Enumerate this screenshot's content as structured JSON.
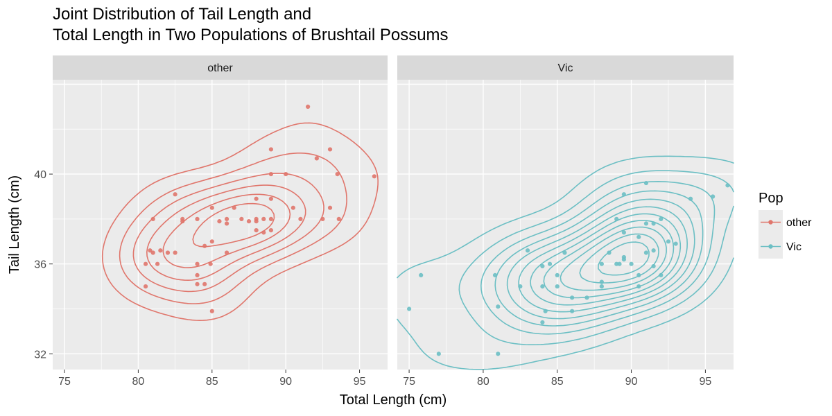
{
  "chart_data": {
    "type": "scatter",
    "title": [
      "Joint Distribution of Tail Length and",
      "Total Length in Two Populations of Brushtail Possums"
    ],
    "xlabel": "Total Length (cm)",
    "ylabel": "Tail Length (cm)",
    "xlim": [
      74.2,
      96.9
    ],
    "ylim": [
      31.3,
      44.2
    ],
    "x_ticks": [
      75,
      80,
      85,
      90,
      95
    ],
    "y_ticks": [
      32,
      36,
      40
    ],
    "grid": true,
    "legend": {
      "title": "Pop",
      "position": "right",
      "entries": [
        {
          "label": "other",
          "color": "#E0766C"
        },
        {
          "label": "Vic",
          "color": "#6CBFC4"
        }
      ]
    },
    "panels": [
      {
        "facet_label": "other",
        "color": "#E0766C",
        "points": [
          [
            91.5,
            43.0
          ],
          [
            92.1,
            40.7
          ],
          [
            93.0,
            41.1
          ],
          [
            89.0,
            41.1
          ],
          [
            93.5,
            40.0
          ],
          [
            96.0,
            39.9
          ],
          [
            89.0,
            40.0
          ],
          [
            90.0,
            40.0
          ],
          [
            82.5,
            39.1
          ],
          [
            84.0,
            38.0
          ],
          [
            85.0,
            38.5
          ],
          [
            86.0,
            38.0
          ],
          [
            86.5,
            38.5
          ],
          [
            87.0,
            38.0
          ],
          [
            88.0,
            38.9
          ],
          [
            88.0,
            38.0
          ],
          [
            88.5,
            38.0
          ],
          [
            89.0,
            38.0
          ],
          [
            87.5,
            37.9
          ],
          [
            88.0,
            37.9
          ],
          [
            86.0,
            37.8
          ],
          [
            85.5,
            37.9
          ],
          [
            83.0,
            38.0
          ],
          [
            83.0,
            37.9
          ],
          [
            81.0,
            38.0
          ],
          [
            89.0,
            37.5
          ],
          [
            88.5,
            37.4
          ],
          [
            88.0,
            37.5
          ],
          [
            90.5,
            38.5
          ],
          [
            91.0,
            38.0
          ],
          [
            92.5,
            38.0
          ],
          [
            93.0,
            38.5
          ],
          [
            93.6,
            38.0
          ],
          [
            89.0,
            38.9
          ],
          [
            85.0,
            37.0
          ],
          [
            84.5,
            36.8
          ],
          [
            86.0,
            36.5
          ],
          [
            84.9,
            36.0
          ],
          [
            80.5,
            36.0
          ],
          [
            80.8,
            36.6
          ],
          [
            81.0,
            36.5
          ],
          [
            81.5,
            36.6
          ],
          [
            82.0,
            36.5
          ],
          [
            82.5,
            36.5
          ],
          [
            81.3,
            36.0
          ],
          [
            84.0,
            36.0
          ],
          [
            84.0,
            35.5
          ],
          [
            84.5,
            35.1
          ],
          [
            84.0,
            35.1
          ],
          [
            80.5,
            35.0
          ],
          [
            85.0,
            33.9
          ]
        ],
        "contour_center": [
          88.4,
          38.0
        ],
        "contour_levels": 6
      },
      {
        "facet_label": "Vic",
        "color": "#6CBFC4",
        "points": [
          [
            75.0,
            34.0
          ],
          [
            75.8,
            35.5
          ],
          [
            77.0,
            32.0
          ],
          [
            80.8,
            35.5
          ],
          [
            81.0,
            34.1
          ],
          [
            81.0,
            32.0
          ],
          [
            82.5,
            35.0
          ],
          [
            83.0,
            36.6
          ],
          [
            84.0,
            35.0
          ],
          [
            84.0,
            35.9
          ],
          [
            84.0,
            33.4
          ],
          [
            84.2,
            33.9
          ],
          [
            84.5,
            36.0
          ],
          [
            85.0,
            35.5
          ],
          [
            85.0,
            35.0
          ],
          [
            85.5,
            36.5
          ],
          [
            86.0,
            33.9
          ],
          [
            86.0,
            34.5
          ],
          [
            87.0,
            34.5
          ],
          [
            88.0,
            35.0
          ],
          [
            88.0,
            35.2
          ],
          [
            88.0,
            36.0
          ],
          [
            88.5,
            36.5
          ],
          [
            89.0,
            36.0
          ],
          [
            89.0,
            38.0
          ],
          [
            89.5,
            37.4
          ],
          [
            89.5,
            36.3
          ],
          [
            89.5,
            36.2
          ],
          [
            89.2,
            36.0
          ],
          [
            90.0,
            36.0
          ],
          [
            89.5,
            39.1
          ],
          [
            90.5,
            37.2
          ],
          [
            90.5,
            35.5
          ],
          [
            90.5,
            35.0
          ],
          [
            91.0,
            36.5
          ],
          [
            91.0,
            37.8
          ],
          [
            91.0,
            39.6
          ],
          [
            91.5,
            35.9
          ],
          [
            91.5,
            36.6
          ],
          [
            91.5,
            37.8
          ],
          [
            92.0,
            35.5
          ],
          [
            92.0,
            38.0
          ],
          [
            92.5,
            37.0
          ],
          [
            93.0,
            36.9
          ],
          [
            94.0,
            38.9
          ],
          [
            95.5,
            39.0
          ],
          [
            96.5,
            39.5
          ]
        ],
        "contour_center": [
          89.8,
          36.1
        ],
        "contour_levels": 11
      }
    ]
  }
}
